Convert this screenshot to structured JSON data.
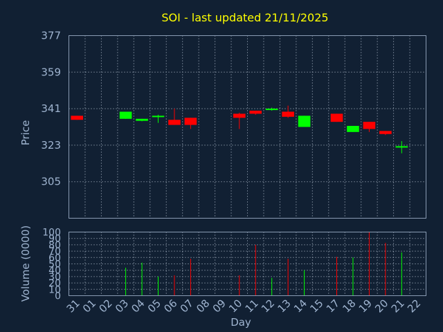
{
  "chart_data": [
    {
      "type": "candlestick",
      "title": "SOI - last updated 21/11/2025",
      "ylabel": "Price",
      "ylim": [
        287,
        377
      ],
      "yticks": [
        305,
        323,
        341,
        359,
        377
      ],
      "grid": true,
      "colors": {
        "up": "#00ff00",
        "down": "#ff0000",
        "background": "#112033",
        "title": "#ffff00",
        "text": "#9fb4d0"
      },
      "categories": [
        "31",
        "01",
        "02",
        "03",
        "04",
        "05",
        "06",
        "07",
        "08",
        "09",
        "10",
        "11",
        "12",
        "13",
        "14",
        "15",
        "17",
        "18",
        "19",
        "20",
        "21",
        "22"
      ],
      "candles": [
        {
          "x": "31",
          "open": 337.5,
          "close": 335.5,
          "high": 337.5,
          "low": 335.5
        },
        {
          "x": "03",
          "open": 336.0,
          "close": 339.5,
          "high": 339.5,
          "low": 336.0
        },
        {
          "x": "04",
          "open": 335.0,
          "close": 336.0,
          "high": 336.0,
          "low": 334.8
        },
        {
          "x": "05",
          "open": 337.0,
          "close": 337.5,
          "high": 338.0,
          "low": 334.0
        },
        {
          "x": "06",
          "open": 335.5,
          "close": 333.0,
          "high": 341.0,
          "low": 333.0
        },
        {
          "x": "07",
          "open": 336.5,
          "close": 333.0,
          "high": 336.5,
          "low": 331.0
        },
        {
          "x": "10",
          "open": 338.5,
          "close": 336.5,
          "high": 339.0,
          "low": 331.0
        },
        {
          "x": "11",
          "open": 340.0,
          "close": 338.5,
          "high": 340.0,
          "low": 338.0
        },
        {
          "x": "12",
          "open": 340.5,
          "close": 341.0,
          "high": 341.5,
          "low": 340.0
        },
        {
          "x": "13",
          "open": 339.5,
          "close": 337.0,
          "high": 342.5,
          "low": 336.5
        },
        {
          "x": "14",
          "open": 332.0,
          "close": 337.5,
          "high": 337.5,
          "low": 332.0
        },
        {
          "x": "17",
          "open": 338.5,
          "close": 334.5,
          "high": 338.5,
          "low": 334.5
        },
        {
          "x": "18",
          "open": 329.5,
          "close": 332.5,
          "high": 332.5,
          "low": 329.5
        },
        {
          "x": "19",
          "open": 334.5,
          "close": 331.0,
          "high": 334.5,
          "low": 329.5
        },
        {
          "x": "20",
          "open": 330.0,
          "close": 328.5,
          "high": 330.0,
          "low": 328.0
        },
        {
          "x": "21",
          "open": 322.0,
          "close": 322.5,
          "high": 325.0,
          "low": 319.0
        }
      ]
    },
    {
      "type": "bar",
      "ylabel": "Volume (0000)",
      "xlabel": "Day",
      "ylim": [
        0,
        100
      ],
      "yticks": [
        0,
        10,
        20,
        30,
        40,
        50,
        60,
        70,
        80,
        90,
        100
      ],
      "grid": true,
      "categories": [
        "31",
        "01",
        "02",
        "03",
        "04",
        "05",
        "06",
        "07",
        "08",
        "09",
        "10",
        "11",
        "12",
        "13",
        "14",
        "15",
        "17",
        "18",
        "19",
        "20",
        "21",
        "22"
      ],
      "series": [
        {
          "values": [
            null,
            null,
            null,
            44,
            52,
            30,
            32,
            58,
            null,
            null,
            32,
            80,
            28,
            58,
            40,
            null,
            61,
            60,
            100,
            83,
            68,
            null
          ],
          "directions": [
            "",
            "",
            "",
            "up",
            "up",
            "up",
            "down",
            "down",
            "",
            "",
            "down",
            "down",
            "up",
            "down",
            "up",
            "",
            "down",
            "up",
            "down",
            "down",
            "up",
            ""
          ]
        }
      ]
    }
  ]
}
